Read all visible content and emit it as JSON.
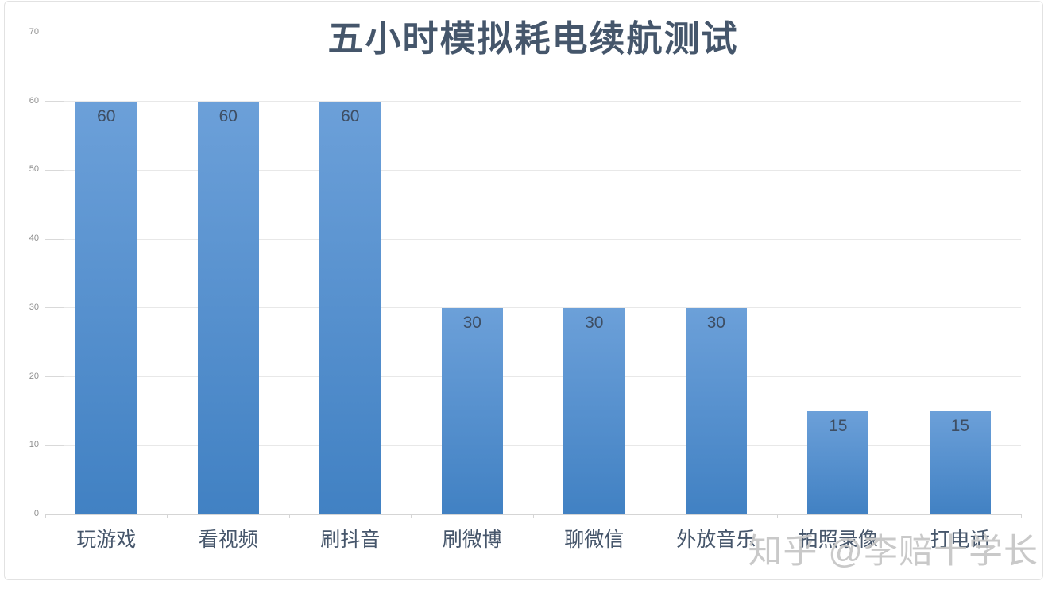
{
  "chart_data": {
    "type": "bar",
    "title": "五小时模拟耗电续航测试",
    "categories": [
      "玩游戏",
      "看视频",
      "刷抖音",
      "刷微博",
      "聊微信",
      "外放音乐",
      "拍照录像",
      "打电话"
    ],
    "values": [
      60,
      60,
      60,
      30,
      30,
      30,
      15,
      15
    ],
    "xlabel": "",
    "ylabel": "",
    "yticks": [
      0,
      10,
      20,
      30,
      40,
      50,
      60,
      70
    ],
    "ylim": [
      0,
      70
    ],
    "grid": true,
    "legend_position": "none",
    "colors": {
      "bar_top": "#6CA0D9",
      "bar_bottom": "#4181C3",
      "value_label": "#3E4E63",
      "title": "#45566B",
      "category_label": "#46566B",
      "tick_label": "#8F8F8F",
      "gridline": "#E8E8E8",
      "baseline": "#D5D5D5"
    }
  },
  "watermark": {
    "text": "知乎 @李赔十学长",
    "color": "#C5C5C5"
  }
}
